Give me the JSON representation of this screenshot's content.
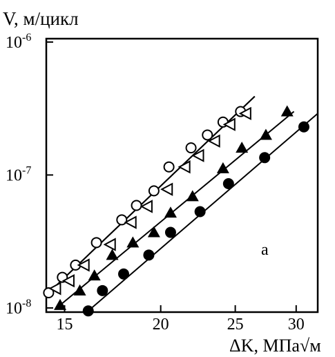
{
  "chart_data": {
    "type": "scatter",
    "title": "",
    "ylabel": "V, м/цикл",
    "xlabel": "ΔK, МПа√м",
    "xscale": "log",
    "yscale": "log",
    "xlim": [
      14.2,
      32.0
    ],
    "ylim": [
      9.3e-09,
      1.06e-06
    ],
    "xticks": [
      {
        "value": 15,
        "label": "15"
      },
      {
        "value": 20,
        "label": "20"
      },
      {
        "value": 25,
        "label": "25"
      },
      {
        "value": 30,
        "label": "30"
      }
    ],
    "yticks": [
      {
        "value": 1e-08,
        "base": "10",
        "exp": "-8"
      },
      {
        "value": 1e-07,
        "base": "10",
        "exp": "-7"
      },
      {
        "value": 1e-06,
        "base": "10",
        "exp": "-6"
      }
    ],
    "grid": false,
    "annotation": "а",
    "series": [
      {
        "marker": "circle-open",
        "points": [
          [
            14.3,
            1.3e-08
          ],
          [
            14.9,
            1.7e-08
          ],
          [
            15.5,
            2.1e-08
          ],
          [
            16.5,
            3.1e-08
          ],
          [
            17.8,
            4.6e-08
          ],
          [
            18.6,
            5.9e-08
          ],
          [
            19.6,
            7.6e-08
          ],
          [
            20.5,
            1.15e-07
          ],
          [
            21.9,
            1.6e-07
          ],
          [
            23.0,
            2e-07
          ],
          [
            24.1,
            2.5e-07
          ],
          [
            25.4,
            3e-07
          ]
        ],
        "fit": [
          [
            14.3,
            1.3e-08
          ],
          [
            26.5,
            3.9e-07
          ]
        ]
      },
      {
        "marker": "triangle-left-open",
        "points": [
          [
            14.6,
            1.4e-08
          ],
          [
            15.2,
            1.6e-08
          ],
          [
            15.9,
            2.1e-08
          ],
          [
            17.2,
            3e-08
          ],
          [
            18.3,
            4.4e-08
          ],
          [
            19.2,
            5.8e-08
          ],
          [
            20.4,
            7.8e-08
          ],
          [
            21.5,
            1.15e-07
          ],
          [
            22.4,
            1.4e-07
          ],
          [
            23.5,
            1.8e-07
          ],
          [
            24.6,
            2.4e-07
          ],
          [
            25.8,
            2.9e-07
          ]
        ],
        "fit": [
          [
            14.3,
            1.3e-08
          ],
          [
            26.5,
            3.9e-07
          ]
        ]
      },
      {
        "marker": "triangle-up-filled",
        "points": [
          [
            14.8,
            1.05e-08
          ],
          [
            15.7,
            1.35e-08
          ],
          [
            16.4,
            1.75e-08
          ],
          [
            17.3,
            2.5e-08
          ],
          [
            18.4,
            3.1e-08
          ],
          [
            19.6,
            3.7e-08
          ],
          [
            20.6,
            5.2e-08
          ],
          [
            22.0,
            6.9e-08
          ],
          [
            24.1,
            1.12e-07
          ],
          [
            25.5,
            1.6e-07
          ],
          [
            27.4,
            2e-07
          ],
          [
            29.2,
            3e-07
          ]
        ],
        "fit": [
          [
            14.8,
            1.05e-08
          ],
          [
            29.8,
            3e-07
          ]
        ]
      },
      {
        "marker": "circle-filled",
        "points": [
          [
            16.1,
            9.5e-09
          ],
          [
            16.8,
            1.35e-08
          ],
          [
            17.9,
            1.8e-08
          ],
          [
            19.3,
            2.5e-08
          ],
          [
            20.6,
            3.7e-08
          ],
          [
            22.5,
            5.3e-08
          ],
          [
            24.5,
            8.6e-08
          ],
          [
            27.3,
            1.35e-07
          ],
          [
            30.7,
            2.3e-07
          ]
        ],
        "fit": [
          [
            16.1,
            9.5e-09
          ],
          [
            32.0,
            2.9e-07
          ]
        ]
      }
    ]
  }
}
